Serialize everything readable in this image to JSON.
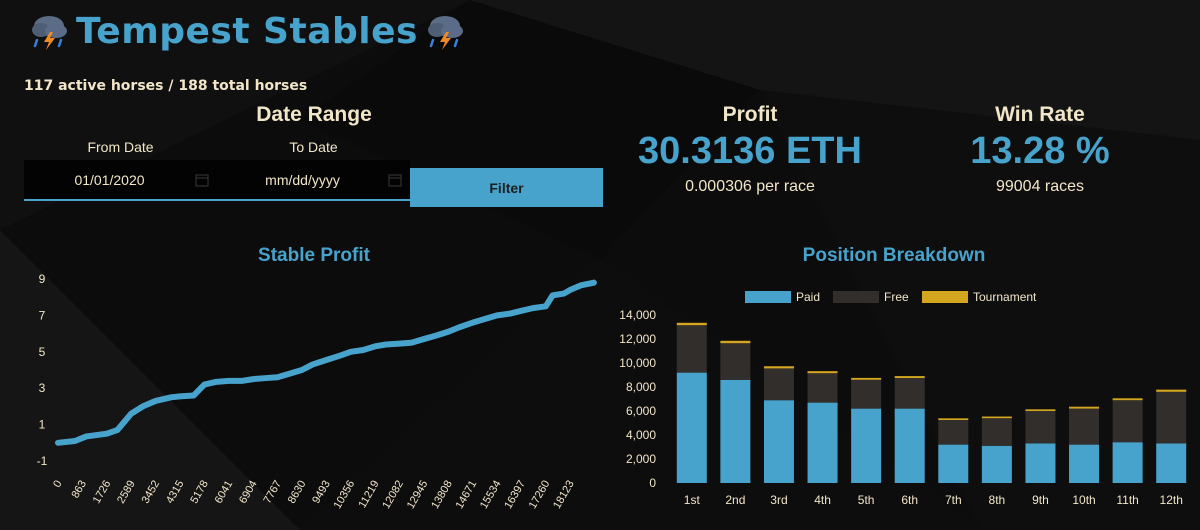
{
  "app": {
    "title": "Tempest Stables",
    "subtitle": "117 active horses / 188 total horses",
    "title_icon": "storm-cloud-icon"
  },
  "date_range": {
    "title": "Date Range",
    "from_label": "From Date",
    "to_label": "To Date",
    "from_value": "01/01/2020",
    "to_value": "mm/dd/yyyy",
    "filter_label": "Filter"
  },
  "profit": {
    "title": "Profit",
    "value": "30.3136 ETH",
    "sub": "0.000306 per race"
  },
  "win_rate": {
    "title": "Win Rate",
    "value": "13.28 %",
    "sub": "99004 races"
  },
  "colors": {
    "accent": "#48a3cc",
    "text": "#f2e6c9",
    "free": "#322e2b",
    "tournament": "#d4a51e",
    "background": "#0c0c0c"
  },
  "chart_data": [
    {
      "type": "line",
      "title": "Stable Profit",
      "xlabel": "",
      "ylabel": "",
      "x_ticks": [
        "0",
        "863",
        "1726",
        "2589",
        "3452",
        "4315",
        "5178",
        "6041",
        "6904",
        "7767",
        "8630",
        "9493",
        "10356",
        "11219",
        "12082",
        "12945",
        "13808",
        "14671",
        "15534",
        "16397",
        "17260",
        "18123"
      ],
      "y_ticks": [
        "-1",
        "1",
        "3",
        "5",
        "7",
        "9"
      ],
      "xlim": [
        0,
        19000
      ],
      "ylim": [
        -1,
        9
      ],
      "series": [
        {
          "x": [
            0,
            600,
            1000,
            1726,
            2100,
            2589,
            3000,
            3452,
            4000,
            4315,
            4800,
            5178,
            5600,
            6041,
            6500,
            6904,
            7300,
            7767,
            8200,
            8630,
            9000,
            9493,
            10000,
            10356,
            10800,
            11219,
            11600,
            12082,
            12500,
            12945,
            13400,
            13808,
            14200,
            14671,
            15100,
            15534,
            16000,
            16397,
            16800,
            17260,
            17500,
            17900,
            18123,
            18500,
            18960
          ],
          "y": [
            0,
            0.1,
            0.35,
            0.5,
            0.7,
            1.6,
            2.0,
            2.3,
            2.5,
            2.55,
            2.6,
            3.2,
            3.35,
            3.4,
            3.4,
            3.5,
            3.55,
            3.6,
            3.8,
            4.0,
            4.3,
            4.55,
            4.8,
            5.0,
            5.1,
            5.3,
            5.4,
            5.45,
            5.5,
            5.7,
            5.9,
            6.1,
            6.35,
            6.6,
            6.8,
            7.0,
            7.1,
            7.25,
            7.4,
            7.5,
            8.1,
            8.2,
            8.4,
            8.65,
            8.8
          ]
        }
      ]
    },
    {
      "type": "bar",
      "stacked": true,
      "title": "Position Breakdown",
      "categories": [
        "1st",
        "2nd",
        "3rd",
        "4th",
        "5th",
        "6th",
        "7th",
        "8th",
        "9th",
        "10th",
        "11th",
        "12th"
      ],
      "ylim": [
        0,
        14000
      ],
      "y_ticks": [
        "0",
        "2,000",
        "4,000",
        "6,000",
        "8,000",
        "10,000",
        "12,000",
        "14,000"
      ],
      "legend_position": "top",
      "series": [
        {
          "name": "Paid",
          "color": "#48a3cc",
          "values": [
            9200,
            8600,
            6900,
            6700,
            6200,
            6200,
            3200,
            3100,
            3300,
            3200,
            3400,
            3300
          ]
        },
        {
          "name": "Free",
          "color": "#322e2b",
          "values": [
            3950,
            3050,
            2650,
            2450,
            2400,
            2550,
            2050,
            2300,
            2700,
            3000,
            3500,
            4300
          ]
        },
        {
          "name": "Tournament",
          "color": "#d4a51e",
          "values": [
            200,
            200,
            180,
            170,
            160,
            160,
            140,
            140,
            140,
            160,
            160,
            180
          ]
        }
      ]
    }
  ]
}
